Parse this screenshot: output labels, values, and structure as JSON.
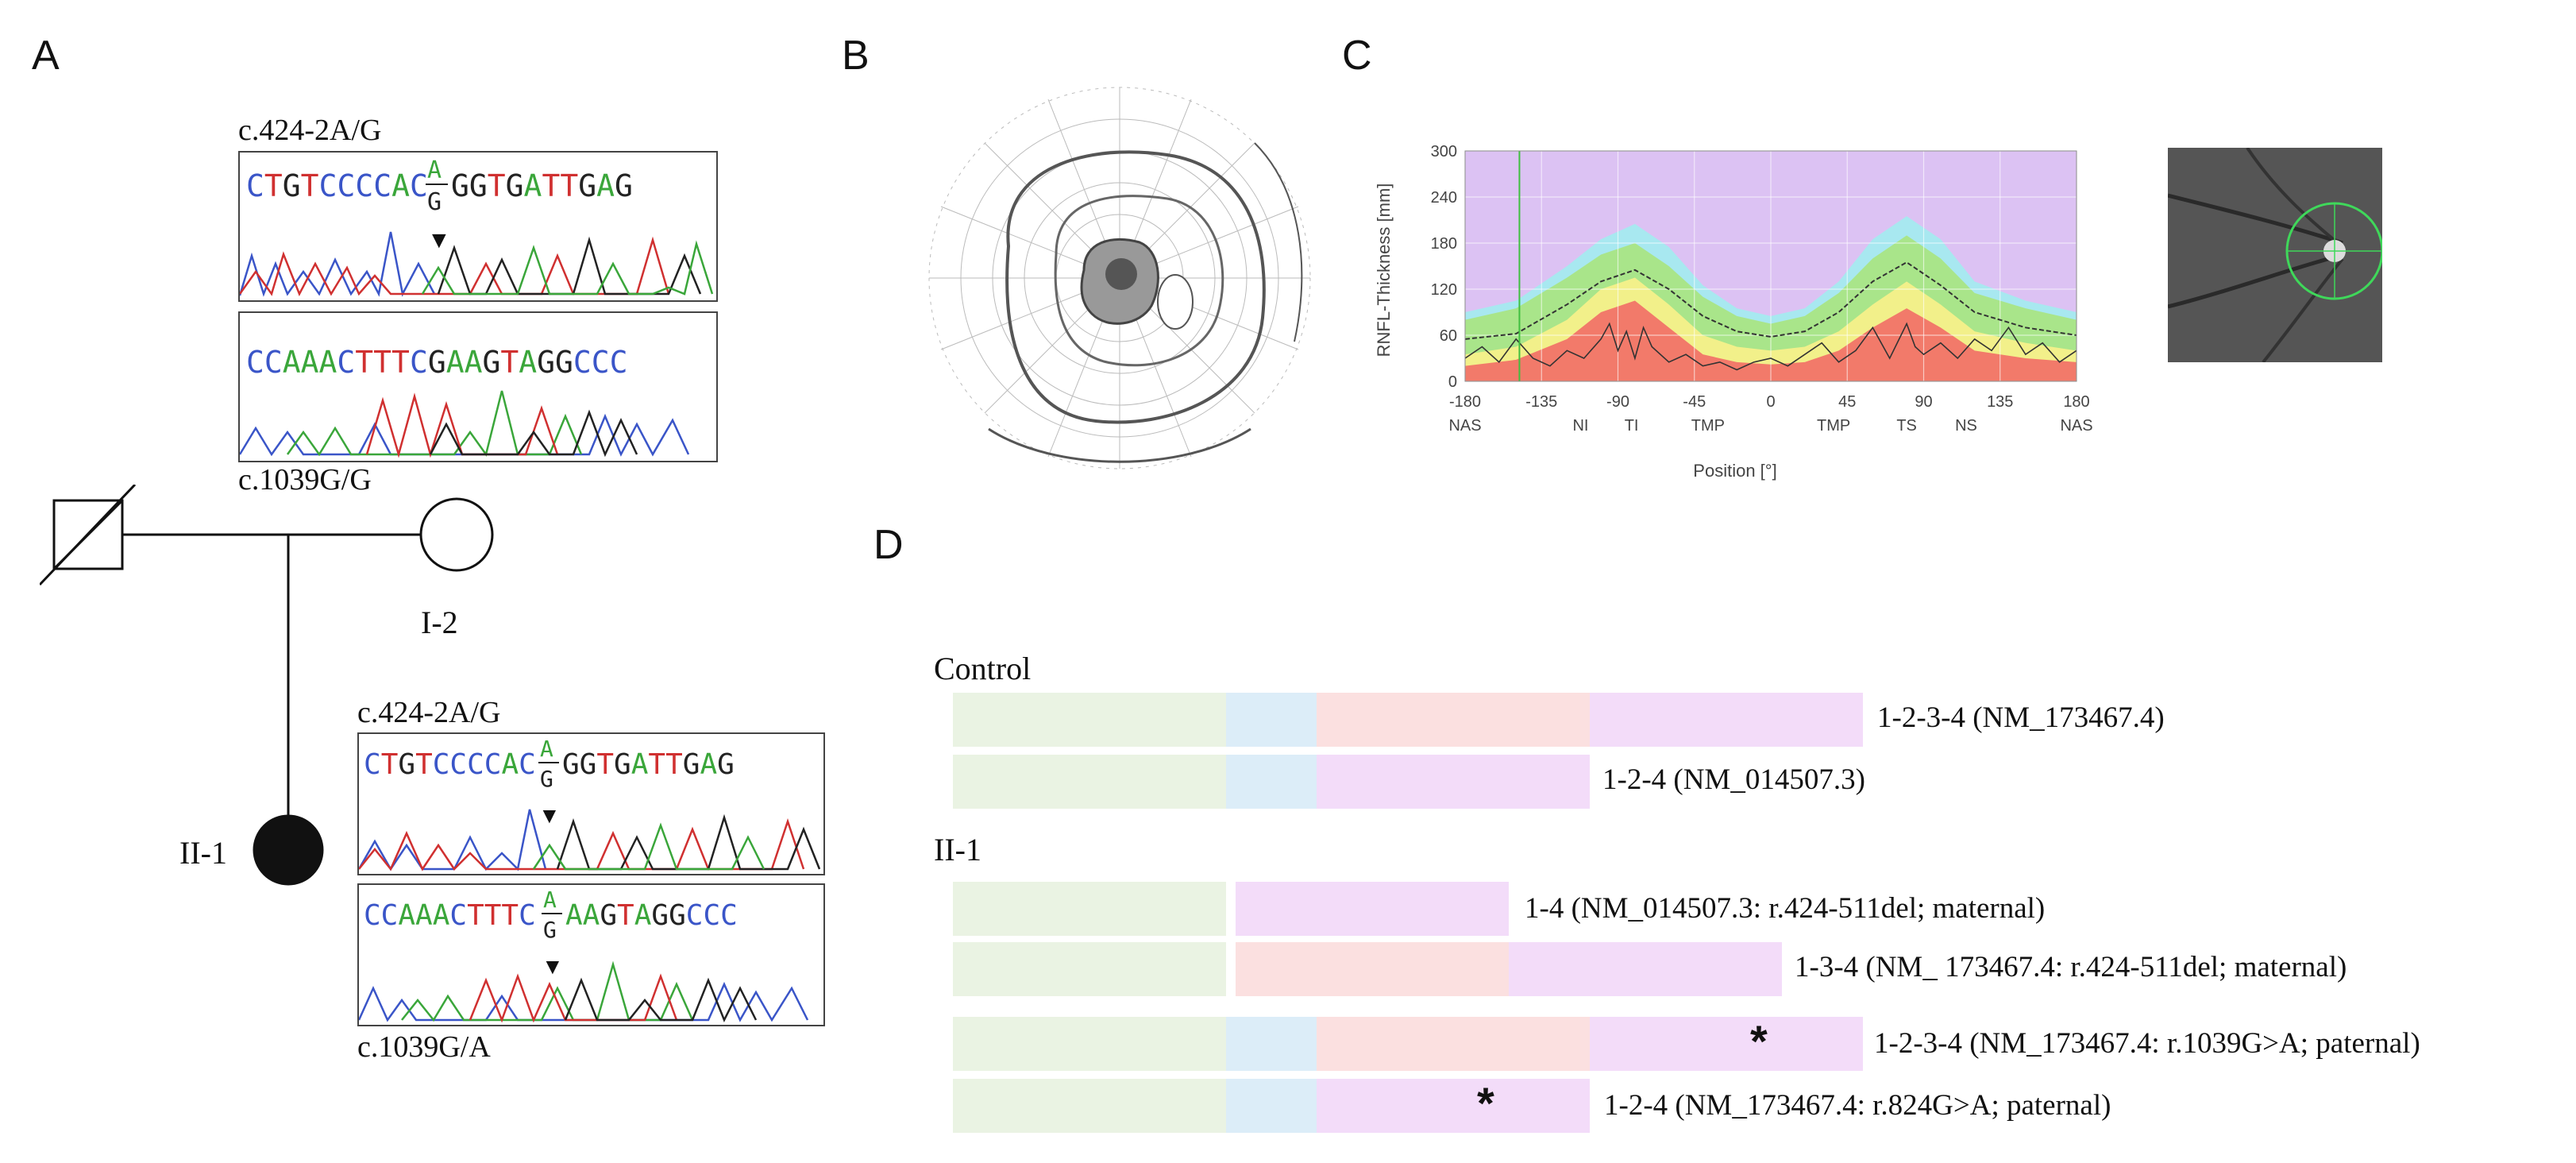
{
  "panels": {
    "a": "A",
    "b": "B",
    "c": "C",
    "d": "D"
  },
  "panel_a": {
    "top_label_1": "c.424-2A/G",
    "top_label_2": "c.1039G/G",
    "seq1": {
      "prefix": "CTGTCCCCAC",
      "top": "A",
      "bottom": "G",
      "suffix": "GGTGATTGAG"
    },
    "seq2": {
      "text": "CCAAACTTTCGAAGTAGGCCC"
    },
    "pedigree": {
      "father_label": "",
      "mother_label": "I-2",
      "child_label": "II-1"
    },
    "bottom_label_1": "c.424-2A/G",
    "bottom_label_2": "c.1039G/A",
    "seq3": {
      "prefix": "CTGTCCCCAC",
      "top": "A",
      "bottom": "G",
      "suffix": "GGTGATTGAG"
    },
    "seq4": {
      "prefix": "CCAAACTTTC",
      "top": "A",
      "bottom": "G",
      "suffix": "AAGTAGGCCC"
    },
    "arrow_glyph": "▼"
  },
  "panel_c": {
    "chart_data": {
      "type": "area",
      "title": "",
      "ylabel": "RNFL-Thickness [mm]",
      "xlabel": "Position [°]",
      "x_ticks": [
        -180,
        -135,
        -90,
        -45,
        0,
        45,
        90,
        135,
        180
      ],
      "y_ticks": [
        0,
        60,
        120,
        180,
        240,
        300
      ],
      "ylim": [
        0,
        300
      ],
      "xlim": [
        -180,
        180
      ],
      "sector_labels": [
        "NAS",
        "NI",
        "TI",
        "TMP",
        "TMP",
        "TS",
        "NS",
        "NAS"
      ],
      "sector_positions": [
        -180,
        -112,
        -82,
        -37,
        37,
        80,
        115,
        180
      ],
      "bands": {
        "x": [
          -180,
          -150,
          -120,
          -100,
          -80,
          -60,
          -40,
          -20,
          0,
          20,
          40,
          60,
          80,
          100,
          120,
          150,
          180
        ],
        "red_top": [
          20,
          28,
          55,
          90,
          105,
          70,
          35,
          25,
          22,
          25,
          40,
          70,
          95,
          70,
          40,
          30,
          25
        ],
        "yellow_top": [
          35,
          45,
          80,
          120,
          135,
          100,
          60,
          45,
          40,
          45,
          65,
          100,
          130,
          100,
          65,
          50,
          40
        ],
        "green_top": [
          80,
          95,
          135,
          165,
          180,
          150,
          110,
          85,
          75,
          85,
          115,
          160,
          190,
          160,
          115,
          95,
          80
        ],
        "blue_top": [
          90,
          105,
          150,
          185,
          205,
          175,
          125,
          95,
          85,
          95,
          130,
          185,
          215,
          185,
          130,
          105,
          90
        ]
      },
      "series": [
        {
          "name": "mean",
          "x": [
            -180,
            -150,
            -120,
            -100,
            -80,
            -60,
            -40,
            -20,
            0,
            20,
            40,
            60,
            80,
            100,
            120,
            150,
            180
          ],
          "y": [
            55,
            62,
            100,
            130,
            145,
            120,
            85,
            65,
            58,
            65,
            90,
            130,
            155,
            125,
            90,
            70,
            60
          ]
        },
        {
          "name": "patient",
          "x": [
            -180,
            -170,
            -160,
            -150,
            -140,
            -130,
            -120,
            -110,
            -100,
            -95,
            -90,
            -85,
            -80,
            -75,
            -70,
            -60,
            -50,
            -40,
            -30,
            -20,
            -10,
            0,
            10,
            20,
            30,
            40,
            50,
            60,
            70,
            80,
            85,
            90,
            100,
            110,
            120,
            130,
            140,
            150,
            160,
            170,
            180
          ],
          "y": [
            30,
            45,
            25,
            55,
            30,
            20,
            40,
            30,
            55,
            75,
            40,
            65,
            30,
            70,
            45,
            25,
            35,
            20,
            25,
            15,
            25,
            30,
            20,
            35,
            50,
            25,
            40,
            70,
            30,
            75,
            45,
            35,
            50,
            30,
            55,
            40,
            70,
            35,
            50,
            25,
            40
          ]
        }
      ],
      "marker_x": -148
    },
    "fundus_label": ""
  },
  "panel_d": {
    "control_label": "Control",
    "patient_label": "II-1",
    "transcripts": {
      "c1": "1-2-3-4 (NM_173467.4)",
      "c2": "1-2-4 (NM_014507.3)",
      "p1": "1-4 (NM_014507.3: r.424-511del; maternal)",
      "p2": "1-3-4 (NM_ 173467.4: r.424-511del; maternal)",
      "p3": "1-2-3-4 (NM_173467.4: r.1039G>A; paternal)",
      "p4": "1-2-4 (NM_173467.4: r.824G>A; paternal)"
    },
    "star": "*"
  },
  "colors": {
    "nuc_A": "#3aa63a",
    "nuc_C": "#3a55c8",
    "nuc_G": "#222222",
    "nuc_T": "#d03030",
    "chart_purple": "#dcc2f3",
    "chart_blue": "#a8e8f0",
    "chart_green": "#a9e58a",
    "chart_yellow": "#f2f08a",
    "chart_red": "#f27a6a"
  }
}
